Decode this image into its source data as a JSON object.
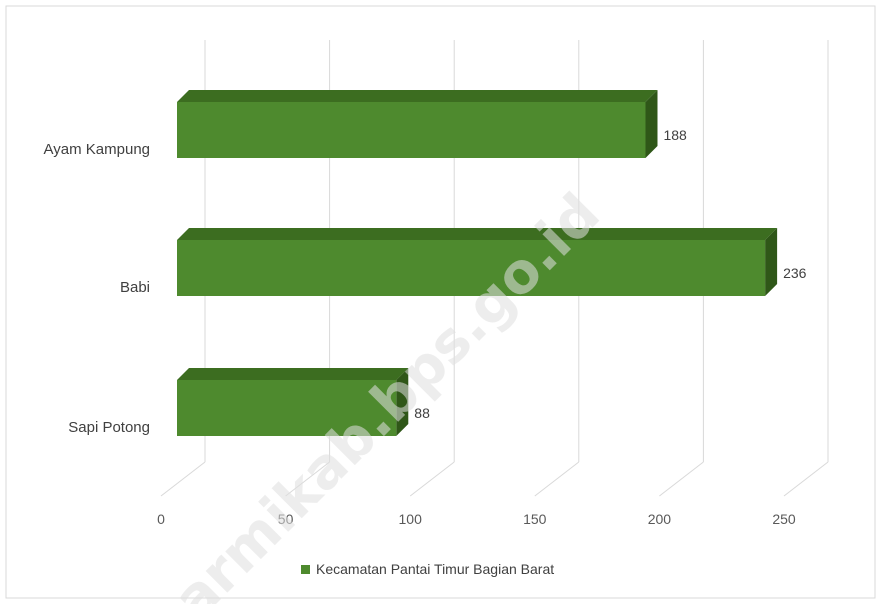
{
  "chart_data": {
    "type": "bar",
    "orientation": "horizontal",
    "three_d": true,
    "categories": [
      "Ayam Kampung",
      "Babi",
      "Sapi Potong"
    ],
    "series": [
      {
        "name": "Kecamatan Pantai Timur Bagian Barat",
        "values": [
          188,
          236,
          88
        ],
        "color": "#4e8a2e"
      }
    ],
    "xlim": [
      0,
      250
    ],
    "xticks": [
      0,
      50,
      100,
      150,
      200,
      250
    ],
    "grid": true,
    "legend_position": "bottom"
  },
  "watermark": "armikab.bps.go.id",
  "colors": {
    "bar_front": "#4e8a2e",
    "bar_top": "#3c6d20",
    "bar_side": "#2f5718",
    "grid": "#d9d9d9"
  }
}
